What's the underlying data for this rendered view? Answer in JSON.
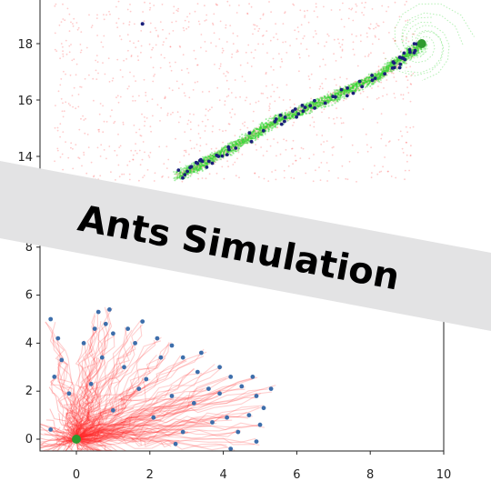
{
  "banner": {
    "title": "Ants Simulation",
    "background": "#e3e3e4"
  },
  "colors": {
    "trail_red": "#ff2a2a",
    "trail_green": "#2fd62f",
    "ant_dark_blue": "#1a1f7a",
    "ant_blue": "#3d6eab",
    "nest_green": "#2e9a2e"
  },
  "chart_data": [
    {
      "type": "scatter",
      "panel": "top",
      "title": "",
      "xlabel": "",
      "ylabel": "",
      "ylim": [
        13.1,
        19.5
      ],
      "xlim": [
        -0.6,
        10.7
      ],
      "y_ticks": [
        "14",
        "16",
        "18"
      ],
      "nest": {
        "x": 9.4,
        "y": 18.0
      },
      "trail_path": [
        [
          2.8,
          13.3
        ],
        [
          4.1,
          14.2
        ],
        [
          5.5,
          15.3
        ],
        [
          7.0,
          16.1
        ],
        [
          8.3,
          16.9
        ],
        [
          9.4,
          18.0
        ]
      ],
      "isolated_ants": [
        {
          "x": 1.8,
          "y": 18.7
        }
      ],
      "grid": false
    },
    {
      "type": "scatter",
      "panel": "bottom",
      "title": "",
      "xlabel": "",
      "ylabel": "",
      "xlim": [
        -1,
        10
      ],
      "ylim": [
        -0.8,
        8.3
      ],
      "x_ticks": [
        "0",
        "2",
        "4",
        "6",
        "8",
        "10"
      ],
      "y_ticks": [
        "0",
        "2",
        "4",
        "6",
        "8"
      ],
      "nest": {
        "x": 0.0,
        "y": 0.0
      },
      "ants": [
        {
          "x": -0.7,
          "y": 5.0
        },
        {
          "x": 0.5,
          "y": 4.6
        },
        {
          "x": 0.8,
          "y": 4.8
        },
        {
          "x": 0.6,
          "y": 5.3
        },
        {
          "x": 1.0,
          "y": 4.4
        },
        {
          "x": 1.4,
          "y": 4.6
        },
        {
          "x": 1.8,
          "y": 4.9
        },
        {
          "x": 2.2,
          "y": 4.2
        },
        {
          "x": 2.6,
          "y": 3.9
        },
        {
          "x": 2.9,
          "y": 3.4
        },
        {
          "x": 3.4,
          "y": 3.6
        },
        {
          "x": 3.9,
          "y": 3.0
        },
        {
          "x": 4.2,
          "y": 2.6
        },
        {
          "x": 4.5,
          "y": 2.2
        },
        {
          "x": 4.9,
          "y": 1.8
        },
        {
          "x": 5.1,
          "y": 1.3
        },
        {
          "x": 4.7,
          "y": 1.0
        },
        {
          "x": 5.0,
          "y": 0.6
        },
        {
          "x": 4.4,
          "y": 0.3
        },
        {
          "x": 4.9,
          "y": -0.1
        },
        {
          "x": 4.2,
          "y": -0.4
        },
        {
          "x": 3.7,
          "y": 0.7
        },
        {
          "x": 3.2,
          "y": 1.5
        },
        {
          "x": 2.6,
          "y": 1.8
        },
        {
          "x": 1.9,
          "y": 2.5
        },
        {
          "x": 1.3,
          "y": 3.0
        },
        {
          "x": 0.7,
          "y": 3.4
        },
        {
          "x": 0.2,
          "y": 4.0
        },
        {
          "x": -0.4,
          "y": 3.3
        },
        {
          "x": -0.6,
          "y": 2.6
        },
        {
          "x": -0.2,
          "y": 1.9
        },
        {
          "x": 0.4,
          "y": 2.3
        },
        {
          "x": 1.0,
          "y": 1.2
        },
        {
          "x": 2.1,
          "y": 0.9
        },
        {
          "x": 2.9,
          "y": 0.3
        },
        {
          "x": 3.6,
          "y": 2.1
        },
        {
          "x": 3.3,
          "y": 2.8
        },
        {
          "x": 5.3,
          "y": 2.1
        },
        {
          "x": 4.8,
          "y": 2.6
        },
        {
          "x": 2.3,
          "y": 3.4
        },
        {
          "x": 1.6,
          "y": 4.0
        },
        {
          "x": -0.5,
          "y": 4.2
        },
        {
          "x": 0.9,
          "y": 5.4
        },
        {
          "x": 2.7,
          "y": -0.2
        },
        {
          "x": 3.9,
          "y": 1.9
        },
        {
          "x": 4.1,
          "y": 0.9
        },
        {
          "x": -0.7,
          "y": 0.4
        },
        {
          "x": 1.7,
          "y": 2.1
        }
      ],
      "grid": false
    }
  ]
}
